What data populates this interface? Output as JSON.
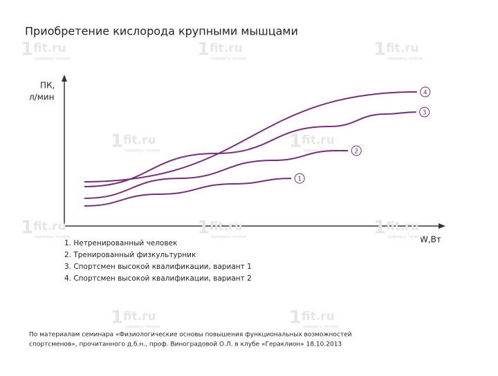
{
  "chart_data": {
    "type": "line",
    "title": "Приобретение кислорода крупными мышцами",
    "ylabel": [
      "ПК,",
      "л/мин"
    ],
    "xlabel": "W,Вт",
    "xlim": [
      0,
      100
    ],
    "ylim": [
      0,
      100
    ],
    "series": [
      {
        "name": "1",
        "color": "#7b2a7f",
        "x": [
          5.3,
          25,
          45,
          60
        ],
        "values": [
          13.7,
          21.7,
          28.8,
          32.5
        ]
      },
      {
        "name": "2",
        "color": "#7b2a7f",
        "x": [
          5.3,
          30,
          55,
          72,
          75
        ],
        "values": [
          18.9,
          32.5,
          44.8,
          51.4,
          51.4
        ]
      },
      {
        "name": "3",
        "color": "#7b2a7f",
        "x": [
          5.3,
          40,
          70,
          85,
          93
        ],
        "values": [
          26.9,
          49.5,
          67.9,
          76.4,
          77.8
        ]
      },
      {
        "name": "4",
        "color": "#7b2a7f",
        "x": [
          5.3,
          93.2
        ],
        "values": [
          30.2,
          91.5
        ]
      }
    ],
    "legend_items": [
      "1. Нетренированный человек",
      "2. Тренированный физкультурник",
      "3. Спортсмен высокой квалификации, вариант 1",
      "4. Спортсмен высокой квалификации, вариант 2"
    ],
    "source": [
      "По материалам семинара «Физиологические основы повышения функциональных возможностей",
      "спортсменов», прочитанного д.б.н., проф. Виноградовой О.Л. в клубе «Гераклион» 18.10.2013"
    ],
    "watermark": {
      "logo": "1",
      "text": "fit.ru",
      "tagline": "займись телом"
    }
  }
}
